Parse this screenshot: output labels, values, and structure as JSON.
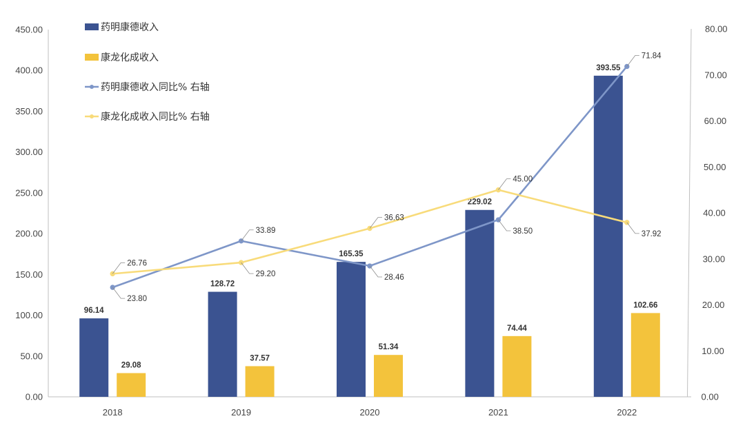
{
  "chart_data": {
    "type": "bar",
    "categories": [
      "2018",
      "2019",
      "2020",
      "2021",
      "2022"
    ],
    "series": [
      {
        "name": "药明康德收入",
        "kind": "bar",
        "axis": "left",
        "color": "#3b5391",
        "values": [
          96.14,
          128.72,
          165.35,
          229.02,
          393.55
        ],
        "labels": [
          "96.14",
          "128.72",
          "165.35",
          "229.02",
          "393.55"
        ]
      },
      {
        "name": "康龙化成收入",
        "kind": "bar",
        "axis": "left",
        "color": "#f3c33c",
        "values": [
          29.08,
          37.57,
          51.34,
          74.44,
          102.66
        ],
        "labels": [
          "29.08",
          "37.57",
          "51.34",
          "74.44",
          "102.66"
        ]
      },
      {
        "name": "药明康德收入同比% 右轴",
        "kind": "line",
        "axis": "right",
        "color": "#7e96c8",
        "values": [
          23.8,
          33.89,
          28.46,
          38.5,
          71.84
        ],
        "labels": [
          "23.80",
          "33.89",
          "28.46",
          "38.50",
          "71.84"
        ]
      },
      {
        "name": "康龙化成收入同比% 右轴",
        "kind": "line",
        "axis": "right",
        "color": "#f8db7a",
        "values": [
          26.76,
          29.2,
          36.63,
          45.0,
          37.92
        ],
        "labels": [
          "26.76",
          "29.20",
          "36.63",
          "45.00",
          "37.92"
        ]
      }
    ],
    "y_left": {
      "range": [
        0,
        450
      ],
      "ticks": [
        "0.00",
        "50.00",
        "100.00",
        "150.00",
        "200.00",
        "250.00",
        "300.00",
        "350.00",
        "400.00",
        "450.00"
      ]
    },
    "y_right": {
      "range": [
        0,
        80
      ],
      "ticks": [
        "0.00",
        "10.00",
        "20.00",
        "30.00",
        "40.00",
        "50.00",
        "60.00",
        "70.00",
        "80.00"
      ]
    },
    "legend_position": "top-left",
    "grid": false,
    "title": ""
  }
}
